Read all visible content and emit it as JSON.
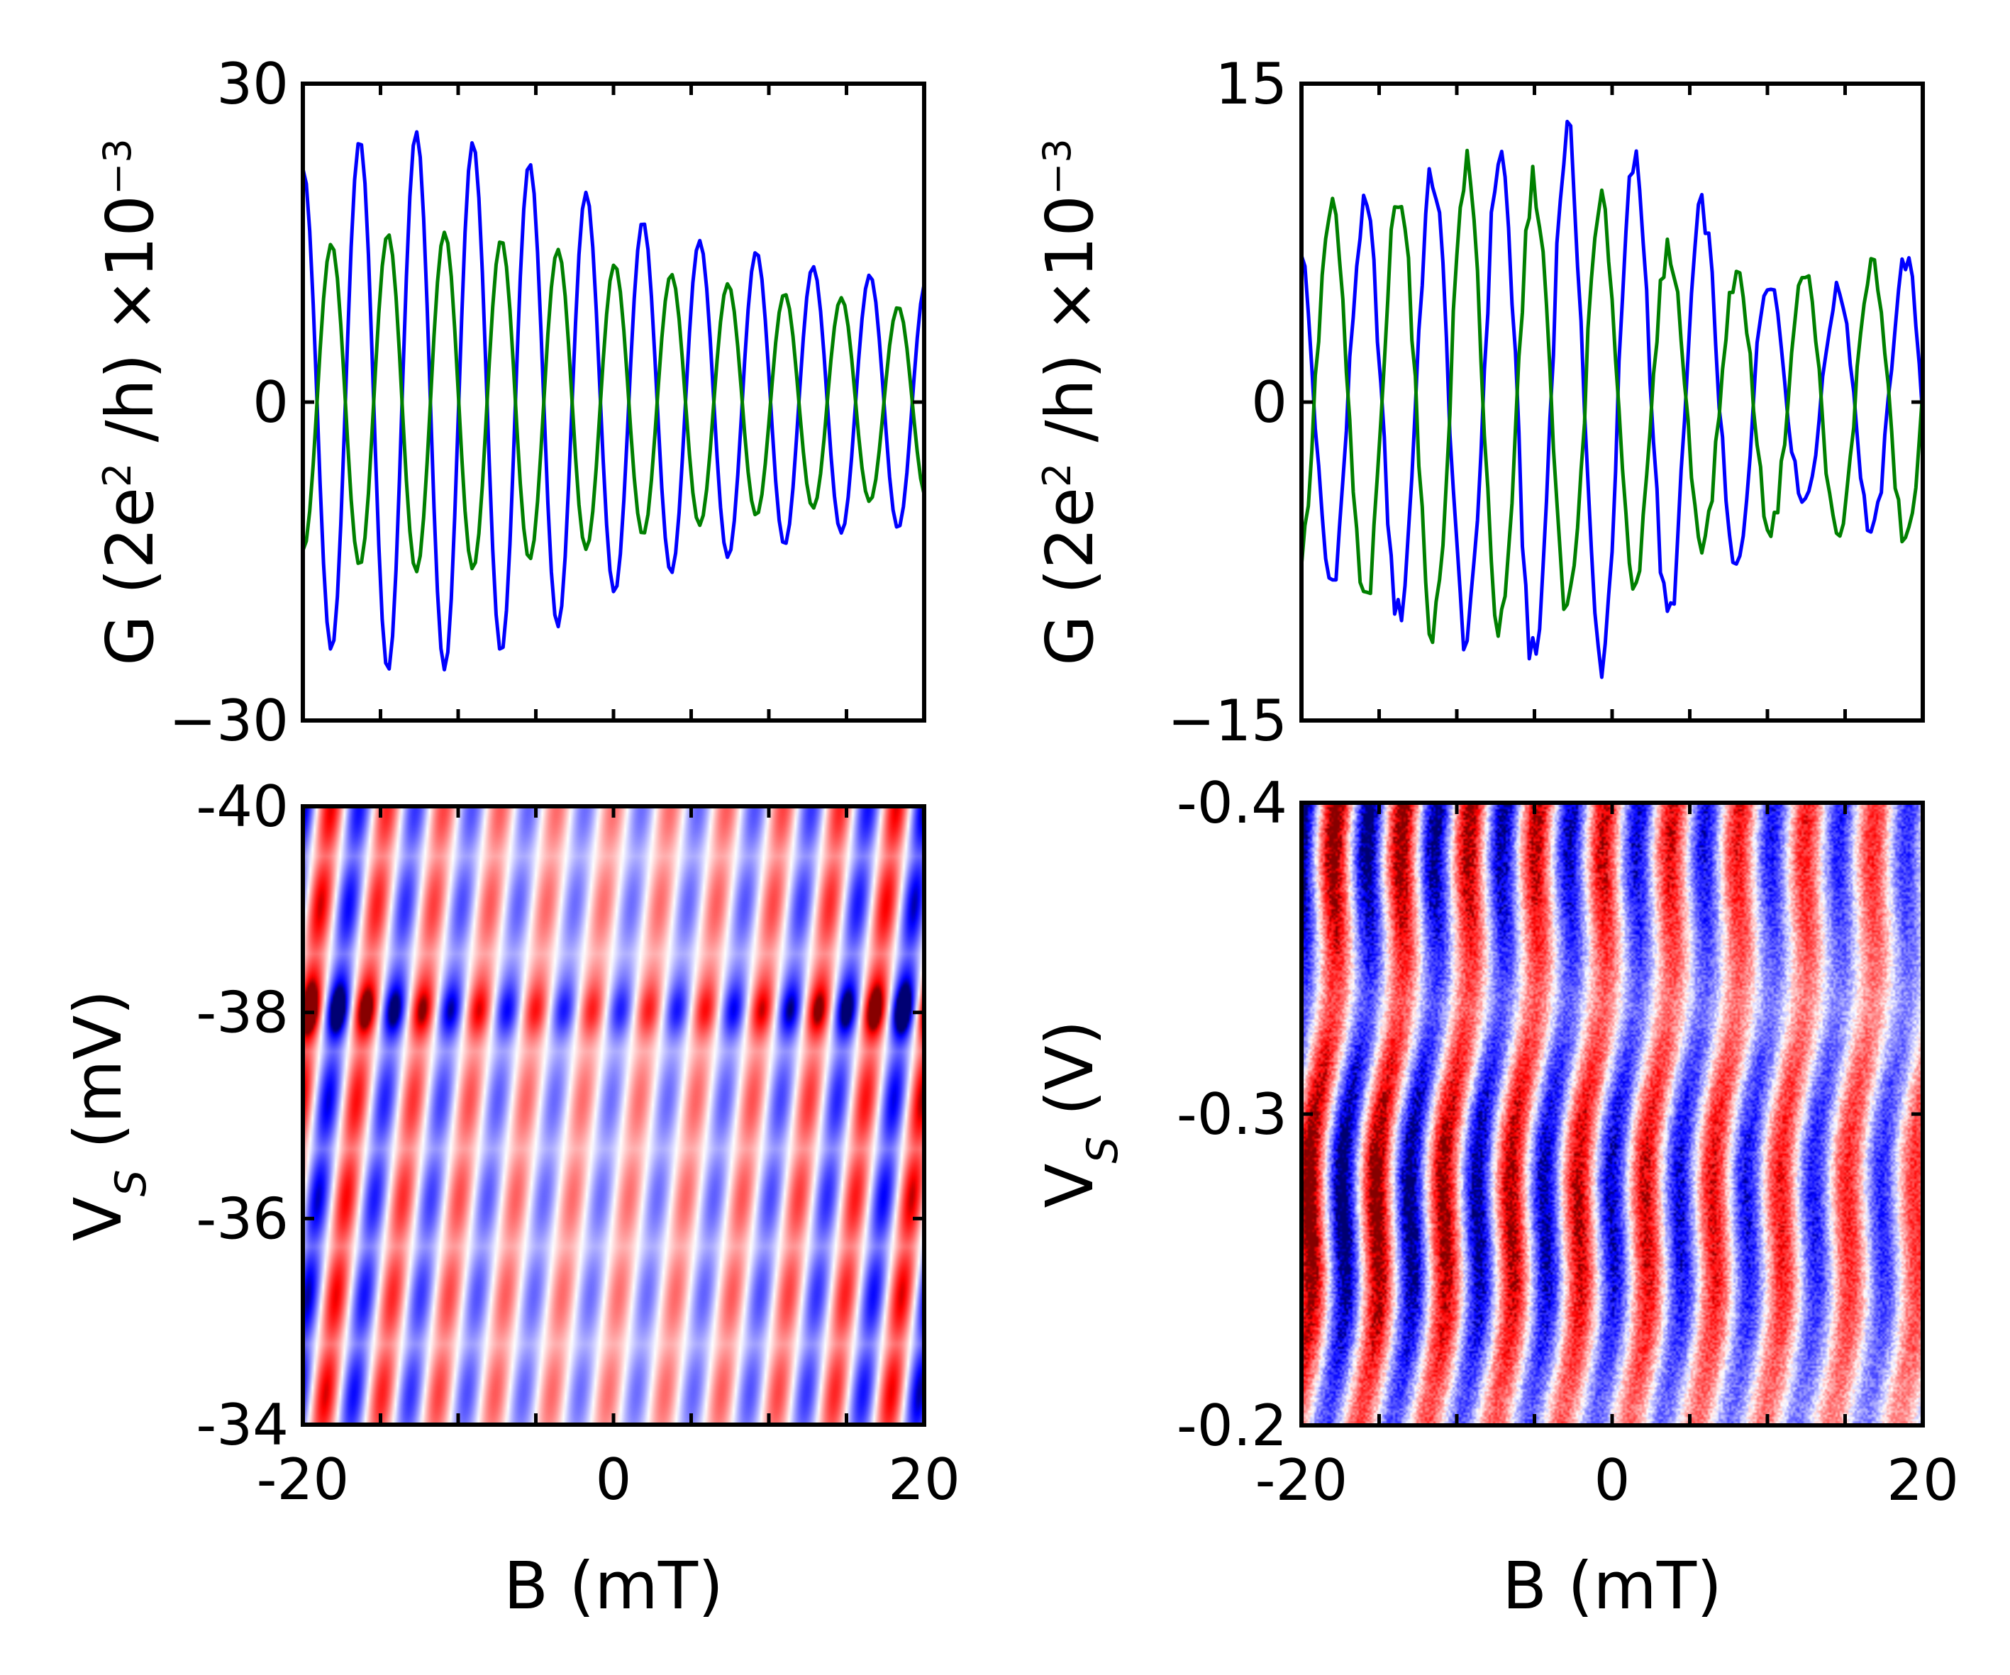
{
  "colors": {
    "blue": "#0000ff",
    "green": "#008000",
    "red": "#ee0000",
    "navy": "#000066"
  },
  "chart_data": [
    {
      "id": "top-left",
      "type": "line",
      "title": "",
      "xlabel": "",
      "ylabel_main": "G (2e",
      "ylabel_sup": "2",
      "ylabel_rest": " /h) ×10",
      "ylabel_exp": "−3",
      "xlim": [
        -20,
        20
      ],
      "ylim": [
        -30,
        30
      ],
      "yticks": [
        {
          "v": -30,
          "label": "−30"
        },
        {
          "v": 0,
          "label": "0"
        },
        {
          "v": 30,
          "label": "30"
        }
      ],
      "x": [
        -20,
        -18,
        -16,
        -14,
        -12,
        -10,
        -8,
        -6,
        -4,
        -2,
        0,
        2,
        4,
        6,
        8,
        10,
        12,
        14,
        16,
        18,
        20
      ],
      "series": [
        {
          "name": "blue trace",
          "color": "#0000ff",
          "period": 3.65,
          "phase": 0.0,
          "amplitude": [
            22,
            23.5,
            25,
            25.5,
            25.5,
            25,
            24,
            23,
            21.5,
            20,
            18,
            17,
            16,
            15,
            14.5,
            14,
            13,
            12.5,
            12,
            12,
            11.5
          ]
        },
        {
          "name": "green trace",
          "color": "#008000",
          "period": 3.65,
          "phase": 3.14159,
          "amplitude": [
            14,
            15,
            15.5,
            16,
            16,
            16,
            15.5,
            15,
            14.5,
            14,
            13,
            12.5,
            12,
            11.5,
            11,
            10.5,
            10,
            10,
            9.5,
            9,
            9
          ]
        }
      ]
    },
    {
      "id": "top-right",
      "type": "line",
      "title": "",
      "xlabel": "",
      "ylabel_main": "G (2e",
      "ylabel_sup": "2",
      "ylabel_rest": " /h) ×10",
      "ylabel_exp": "−3",
      "xlim": [
        -20,
        20
      ],
      "ylim": [
        -15,
        15
      ],
      "yticks": [
        {
          "v": -15,
          "label": "−15"
        },
        {
          "v": 0,
          "label": "0"
        },
        {
          "v": 15,
          "label": "15"
        }
      ],
      "x": [
        -20,
        -18,
        -16,
        -14,
        -12,
        -10,
        -8,
        -6,
        -4,
        -2,
        0,
        2,
        4,
        6,
        8,
        10,
        12,
        14,
        16,
        18,
        20
      ],
      "series": [
        {
          "name": "blue trace",
          "color": "#0000ff",
          "period": 4.35,
          "phase": 0.4,
          "amplitude": [
            8,
            8.5,
            9,
            10,
            10.5,
            11,
            11.5,
            12,
            12.5,
            12.5,
            12,
            11,
            10,
            9,
            8,
            6,
            4.5,
            5,
            6,
            6.5,
            7
          ]
        },
        {
          "name": "green trace",
          "color": "#008000",
          "period": 4.35,
          "phase": 3.5,
          "amplitude": [
            8,
            9,
            9.5,
            10,
            10.5,
            11,
            11,
            10.5,
            10,
            9.5,
            9,
            8,
            7,
            6.5,
            6,
            6,
            6,
            6.5,
            6.5,
            6.5,
            6.5
          ]
        }
      ]
    },
    {
      "id": "bottom-left",
      "type": "heatmap",
      "title": "",
      "xlabel": "B (mT)",
      "ylabel_main": "V",
      "ylabel_sub": "S",
      "ylabel_rest": " (mV)",
      "xlim": [
        -20,
        20
      ],
      "ylim": [
        -40,
        -34
      ],
      "xticks": [
        {
          "v": -20,
          "label": "-20"
        },
        {
          "v": 0,
          "label": "0"
        },
        {
          "v": 20,
          "label": "20"
        }
      ],
      "yticks": [
        {
          "v": -40,
          "label": "-40"
        },
        {
          "v": -38,
          "label": "-38"
        },
        {
          "v": -36,
          "label": "-36"
        },
        {
          "v": -34,
          "label": "-34"
        }
      ],
      "colormap": [
        "#0000aa",
        "#0000ff",
        "#ffffff",
        "#ee0000",
        "#880000"
      ],
      "b_period": 3.65,
      "v_period": 0.95,
      "stripe_tilt": 1.2
    },
    {
      "id": "bottom-right",
      "type": "heatmap",
      "title": "",
      "xlabel": "B (mT)",
      "ylabel_main": "V",
      "ylabel_sub": "S",
      "ylabel_rest": " (V)",
      "xlim": [
        -20,
        20
      ],
      "ylim": [
        -0.4,
        -0.2
      ],
      "xticks": [
        {
          "v": -20,
          "label": "-20"
        },
        {
          "v": 0,
          "label": "0"
        },
        {
          "v": 20,
          "label": "20"
        }
      ],
      "yticks": [
        {
          "v": -0.4,
          "label": "-0.4"
        },
        {
          "v": -0.3,
          "label": "-0.3"
        },
        {
          "v": -0.2,
          "label": "-0.2"
        }
      ],
      "colormap": [
        "#0000cc",
        "#0000ff",
        "#ffffff",
        "#ee0000",
        "#cc0000"
      ],
      "b_period": 4.35,
      "stripe_tilt": 11.0,
      "noise": 0.35
    }
  ]
}
